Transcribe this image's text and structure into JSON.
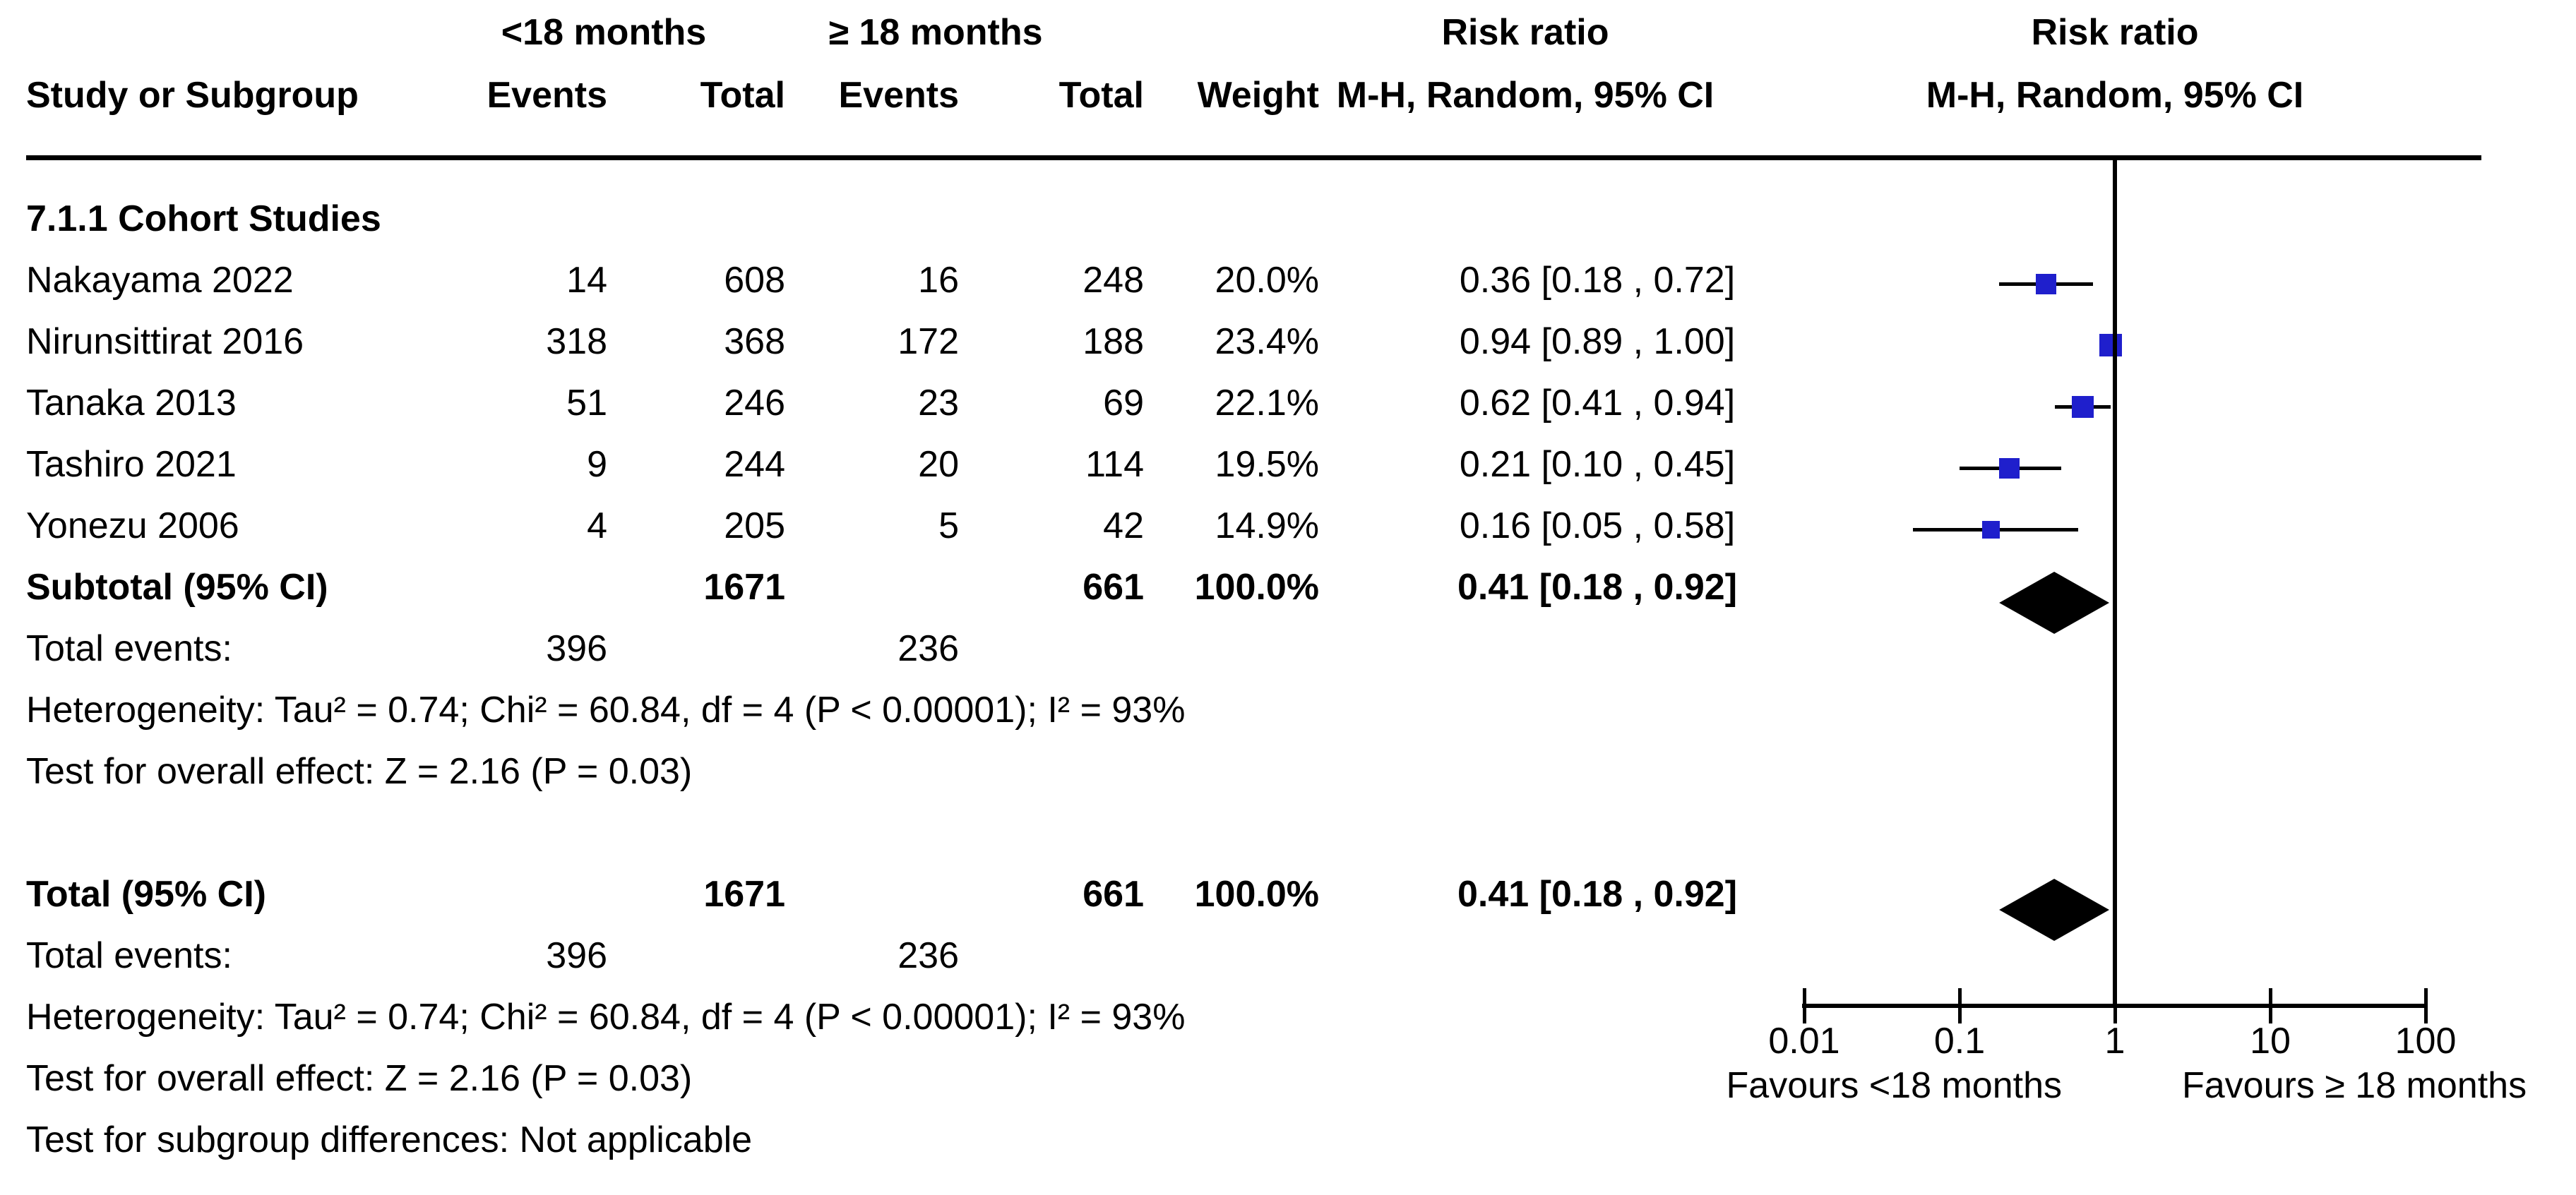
{
  "header": {
    "group1_label": "<18 months",
    "group2_label": "≥ 18 months",
    "col_study": "Study or Subgroup",
    "col_events": "Events",
    "col_total": "Total",
    "col_weight": "Weight",
    "rr_title": "Risk ratio",
    "rr_subtitle": "M-H, Random, 95% CI",
    "plot_rr_title": "Risk ratio",
    "plot_rr_subtitle": "M-H, Random, 95% CI"
  },
  "subgroup": {
    "title": "7.1.1 Cohort Studies",
    "studies": [
      {
        "name": "Nakayama 2022",
        "events1": "14",
        "total1": "608",
        "events2": "16",
        "total2": "248",
        "weight": "20.0%",
        "ci_text": "0.36 [0.18 , 0.72]"
      },
      {
        "name": "Nirunsittirat 2016",
        "events1": "318",
        "total1": "368",
        "events2": "172",
        "total2": "188",
        "weight": "23.4%",
        "ci_text": "0.94 [0.89 , 1.00]"
      },
      {
        "name": "Tanaka 2013",
        "events1": "51",
        "total1": "246",
        "events2": "23",
        "total2": "69",
        "weight": "22.1%",
        "ci_text": "0.62 [0.41 , 0.94]"
      },
      {
        "name": "Tashiro 2021",
        "events1": "9",
        "total1": "244",
        "events2": "20",
        "total2": "114",
        "weight": "19.5%",
        "ci_text": "0.21 [0.10 , 0.45]"
      },
      {
        "name": "Yonezu 2006",
        "events1": "4",
        "total1": "205",
        "events2": "5",
        "total2": "42",
        "weight": "14.9%",
        "ci_text": "0.16 [0.05 , 0.58]"
      }
    ],
    "subtotal": {
      "label": "Subtotal (95% CI)",
      "total1": "1671",
      "total2": "661",
      "weight": "100.0%",
      "ci_text": "0.41 [0.18 , 0.92]"
    },
    "total_events": {
      "label": "Total events:",
      "events1": "396",
      "events2": "236"
    },
    "heterogeneity": "Heterogeneity: Tau² = 0.74; Chi² = 60.84, df = 4 (P < 0.00001); I² = 93%",
    "overall_effect": "Test for overall effect: Z = 2.16 (P = 0.03)"
  },
  "total": {
    "row": {
      "label": "Total (95% CI)",
      "total1": "1671",
      "total2": "661",
      "weight": "100.0%",
      "ci_text": "0.41 [0.18 , 0.92]"
    },
    "total_events": {
      "label": "Total events:",
      "events1": "396",
      "events2": "236"
    },
    "heterogeneity": "Heterogeneity: Tau² = 0.74; Chi² = 60.84, df = 4 (P < 0.00001); I² = 93%",
    "overall_effect": "Test for overall effect: Z = 2.16 (P = 0.03)",
    "subgroup_differences": "Test for subgroup differences: Not applicable"
  },
  "colors": {
    "marker_blue": "#1F1FCC",
    "diamond_black": "#000000",
    "line_black": "#000000"
  },
  "chart_data": {
    "type": "scatter",
    "variant": "forest-plot",
    "effect_measure": "Risk ratio (M-H, Random, 95% CI)",
    "x_scale": "log10",
    "x_ticks": [
      0.01,
      0.1,
      1,
      10,
      100
    ],
    "x_tick_labels": [
      "0.01",
      "0.1",
      "1",
      "10",
      "100"
    ],
    "null_line_x": 1,
    "favours_left": "Favours <18 months",
    "favours_right": "Favours ≥ 18 months",
    "points": [
      {
        "label": "Nakayama 2022",
        "rr": 0.36,
        "ci_low": 0.18,
        "ci_high": 0.72,
        "weight_pct": 20.0
      },
      {
        "label": "Nirunsittirat 2016",
        "rr": 0.94,
        "ci_low": 0.89,
        "ci_high": 1.0,
        "weight_pct": 23.4
      },
      {
        "label": "Tanaka 2013",
        "rr": 0.62,
        "ci_low": 0.41,
        "ci_high": 0.94,
        "weight_pct": 22.1
      },
      {
        "label": "Tashiro 2021",
        "rr": 0.21,
        "ci_low": 0.1,
        "ci_high": 0.45,
        "weight_pct": 19.5
      },
      {
        "label": "Yonezu 2006",
        "rr": 0.16,
        "ci_low": 0.05,
        "ci_high": 0.58,
        "weight_pct": 14.9
      }
    ],
    "diamonds": [
      {
        "label": "Subtotal (95% CI)",
        "rr": 0.41,
        "ci_low": 0.18,
        "ci_high": 0.92
      },
      {
        "label": "Total (95% CI)",
        "rr": 0.41,
        "ci_low": 0.18,
        "ci_high": 0.92
      }
    ]
  }
}
